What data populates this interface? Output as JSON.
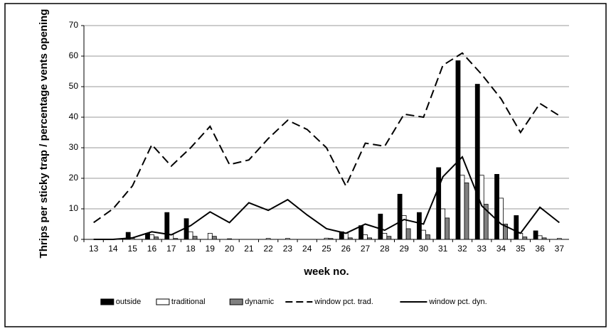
{
  "chart_data": {
    "type": "bar",
    "y_label": "Thrips per sticky trap / percentage vents opening",
    "x_label": "week no.",
    "categories": [
      "13",
      "14",
      "15",
      "16",
      "17",
      "18",
      "19",
      "20",
      "21",
      "22",
      "23",
      "24",
      "25",
      "26",
      "27",
      "28",
      "29",
      "30",
      "31",
      "32",
      "33",
      "34",
      "35",
      "36",
      "37"
    ],
    "series": [
      {
        "name": "outside",
        "type": "bar",
        "color": "#000000",
        "values": [
          0,
          0,
          2.3,
          2,
          8.8,
          6.8,
          0,
          0,
          0,
          0,
          0,
          0,
          0,
          2.5,
          4.5,
          8.3,
          14.8,
          8.8,
          23.5,
          58.5,
          50.8,
          21.3,
          7.8,
          2.8,
          0
        ]
      },
      {
        "name": "traditional",
        "type": "bar",
        "color": "#ffffff",
        "values": [
          0,
          0,
          0.3,
          1.5,
          1.5,
          2.5,
          2,
          0.2,
          0,
          0.3,
          0.3,
          0,
          0.4,
          2,
          1.5,
          2,
          7.8,
          3,
          10,
          21,
          21,
          13.5,
          2,
          1.2,
          0.3
        ]
      },
      {
        "name": "dynamic",
        "type": "bar",
        "color": "#808080",
        "values": [
          0,
          0,
          0,
          0.8,
          0.3,
          1,
          1,
          0,
          0,
          0,
          0,
          0,
          0.3,
          0.5,
          0.5,
          1,
          3.5,
          1.5,
          7,
          18.5,
          11.5,
          5,
          0.8,
          0.5,
          0
        ]
      },
      {
        "name": "window pct. trad.",
        "type": "line",
        "dashed": true,
        "color": "#000000",
        "values": [
          5.5,
          10,
          17.5,
          31,
          24,
          30,
          37,
          24.5,
          26,
          33,
          39,
          36,
          30,
          17.5,
          31.5,
          30.5,
          41,
          40,
          57,
          61,
          54,
          46,
          35,
          44.5,
          40.5
        ]
      },
      {
        "name": "window pct. dyn.",
        "type": "line",
        "dashed": false,
        "color": "#000000",
        "values": [
          0,
          0,
          0.5,
          2.5,
          1.5,
          4.5,
          9,
          5.5,
          12,
          9.5,
          13,
          8,
          3.5,
          2,
          5,
          3,
          6.5,
          5,
          20.5,
          27,
          11,
          5,
          2,
          10.5,
          5.5
        ]
      }
    ],
    "ylim": [
      0,
      70
    ],
    "yticks": [
      0,
      10,
      20,
      30,
      40,
      50,
      60,
      70
    ],
    "grid": true,
    "legend": "bottom"
  }
}
